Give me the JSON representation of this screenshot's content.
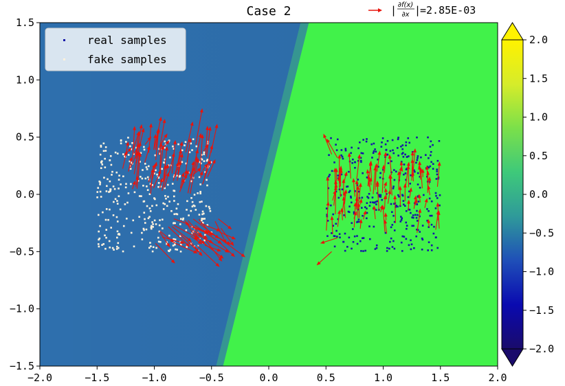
{
  "chart_data": {
    "type": "scatter",
    "title": "Case 2",
    "xlim": [
      -2.0,
      2.0
    ],
    "ylim": [
      -1.5,
      1.5
    ],
    "x_ticks": [
      -2.0,
      -1.5,
      -1.0,
      -0.5,
      0.0,
      0.5,
      1.0,
      1.5,
      2.0
    ],
    "y_ticks": [
      -1.5,
      -1.0,
      -0.5,
      0.0,
      0.5,
      1.0,
      1.5
    ],
    "x_tick_labels": [
      "−2.0",
      "−1.5",
      "−1.0",
      "−0.5",
      "0.0",
      "0.5",
      "1.0",
      "1.5",
      "2.0"
    ],
    "y_tick_labels": [
      "−1.5",
      "−1.0",
      "−0.5",
      "0.0",
      "0.5",
      "1.0",
      "1.5"
    ],
    "background": {
      "type": "decision-surface",
      "left_value": -0.5,
      "right_value": 0.8,
      "boundary_line": [
        [
          -0.4,
          -1.5
        ],
        [
          0.35,
          1.5
        ]
      ],
      "left_color": "#2e6fad",
      "right_color": "#41f24a"
    },
    "series": [
      {
        "name": "real samples",
        "color": "#1414a8",
        "region": {
          "x": [
            0.5,
            1.5
          ],
          "y": [
            -0.5,
            0.5
          ]
        },
        "count": 350
      },
      {
        "name": "fake samples",
        "color": "#fff2dc",
        "region": {
          "x": [
            -1.5,
            -0.5
          ],
          "y": [
            -0.5,
            0.5
          ]
        },
        "count": 350
      }
    ],
    "gradient_arrows": {
      "color": "#e8140c",
      "label_value": "=2.85E-03"
    },
    "legend": {
      "placement": "upper-left",
      "entries": [
        "real samples",
        "fake samples"
      ]
    },
    "colorbar": {
      "min": -2.0,
      "max": 2.0,
      "ticks": [
        2.0,
        1.5,
        1.0,
        0.5,
        0.0,
        -0.5,
        -1.0,
        -1.5,
        -2.0
      ],
      "tick_labels": [
        "2.0",
        "1.5",
        "1.0",
        "0.5",
        "0.0",
        "−0.5",
        "−1.0",
        "−1.5",
        "−2.0"
      ],
      "colors": [
        "#1a0b6b",
        "#0a0ab0",
        "#1f4fb8",
        "#2f9a9a",
        "#3ec97a",
        "#7be04a",
        "#d6ec2a",
        "#fff200"
      ]
    },
    "annotation": {
      "numerator": "∂f(x)",
      "denominator": "∂x",
      "value": "=2.85E-03"
    },
    "grid": false
  }
}
